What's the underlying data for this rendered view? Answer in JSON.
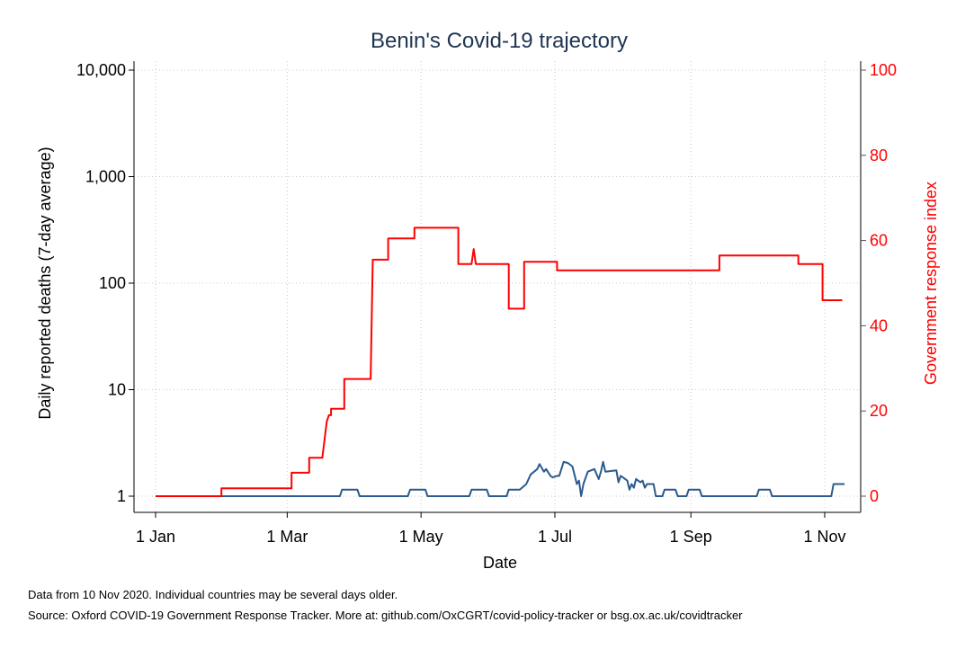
{
  "chart_data": {
    "type": "line",
    "title": "Benin's Covid-19 trajectory",
    "xlabel": "Date",
    "ylabel_left": "Daily reported deaths (7-day average)",
    "ylabel_right": "Government response index",
    "x_range": [
      "2020-01-01",
      "2020-11-10"
    ],
    "x_ticks": [
      {
        "date": "2020-01-01",
        "label": "1 Jan"
      },
      {
        "date": "2020-03-01",
        "label": "1 Mar"
      },
      {
        "date": "2020-05-01",
        "label": "1 May"
      },
      {
        "date": "2020-07-01",
        "label": "1 Jul"
      },
      {
        "date": "2020-09-01",
        "label": "1 Sep"
      },
      {
        "date": "2020-11-01",
        "label": "1 Nov"
      }
    ],
    "y_left": {
      "scale": "log",
      "range": [
        1,
        10000
      ],
      "ticks": [
        1,
        10,
        100,
        1000,
        10000
      ],
      "tick_labels": [
        "1",
        "10",
        "100",
        "1,000",
        "10,000"
      ]
    },
    "y_right": {
      "scale": "linear",
      "range": [
        0,
        100
      ],
      "ticks": [
        0,
        20,
        40,
        60,
        80,
        100
      ],
      "tick_labels": [
        "0",
        "20",
        "40",
        "60",
        "80",
        "100"
      ]
    },
    "grid": true,
    "legend": "none",
    "series": [
      {
        "axis": "left",
        "color": "#2b5a8c",
        "points": [
          [
            "2020-01-01",
            1
          ],
          [
            "2020-03-25",
            1
          ],
          [
            "2020-03-26",
            1.15
          ],
          [
            "2020-04-02",
            1.15
          ],
          [
            "2020-04-03",
            1
          ],
          [
            "2020-04-25",
            1
          ],
          [
            "2020-04-26",
            1.15
          ],
          [
            "2020-05-03",
            1.15
          ],
          [
            "2020-05-04",
            1
          ],
          [
            "2020-05-23",
            1
          ],
          [
            "2020-05-24",
            1.15
          ],
          [
            "2020-05-31",
            1.15
          ],
          [
            "2020-06-01",
            1
          ],
          [
            "2020-06-09",
            1
          ],
          [
            "2020-06-10",
            1.15
          ],
          [
            "2020-06-15",
            1.15
          ],
          [
            "2020-06-18",
            1.3
          ],
          [
            "2020-06-20",
            1.6
          ],
          [
            "2020-06-23",
            1.8
          ],
          [
            "2020-06-24",
            2.0
          ],
          [
            "2020-06-26",
            1.7
          ],
          [
            "2020-06-27",
            1.8
          ],
          [
            "2020-06-29",
            1.55
          ],
          [
            "2020-06-30",
            1.5
          ],
          [
            "2020-07-02",
            1.55
          ],
          [
            "2020-07-03",
            1.55
          ],
          [
            "2020-07-05",
            2.1
          ],
          [
            "2020-07-07",
            2.05
          ],
          [
            "2020-07-09",
            1.9
          ],
          [
            "2020-07-11",
            1.3
          ],
          [
            "2020-07-12",
            1.4
          ],
          [
            "2020-07-13",
            1.0
          ],
          [
            "2020-07-14",
            1.3
          ],
          [
            "2020-07-16",
            1.7
          ],
          [
            "2020-07-19",
            1.8
          ],
          [
            "2020-07-21",
            1.45
          ],
          [
            "2020-07-22",
            1.7
          ],
          [
            "2020-07-23",
            2.1
          ],
          [
            "2020-07-24",
            1.7
          ],
          [
            "2020-07-29",
            1.75
          ],
          [
            "2020-07-30",
            1.35
          ],
          [
            "2020-07-31",
            1.55
          ],
          [
            "2020-08-01",
            1.5
          ],
          [
            "2020-08-03",
            1.4
          ],
          [
            "2020-08-04",
            1.15
          ],
          [
            "2020-08-05",
            1.3
          ],
          [
            "2020-08-06",
            1.2
          ],
          [
            "2020-08-07",
            1.45
          ],
          [
            "2020-08-09",
            1.35
          ],
          [
            "2020-08-10",
            1.4
          ],
          [
            "2020-08-11",
            1.2
          ],
          [
            "2020-08-12",
            1.3
          ],
          [
            "2020-08-15",
            1.3
          ],
          [
            "2020-08-16",
            1.0
          ],
          [
            "2020-08-19",
            1.0
          ],
          [
            "2020-08-20",
            1.15
          ],
          [
            "2020-08-25",
            1.15
          ],
          [
            "2020-08-26",
            1.0
          ],
          [
            "2020-08-30",
            1.0
          ],
          [
            "2020-08-31",
            1.15
          ],
          [
            "2020-09-05",
            1.15
          ],
          [
            "2020-09-06",
            1.0
          ],
          [
            "2020-10-01",
            1.0
          ],
          [
            "2020-10-02",
            1.15
          ],
          [
            "2020-10-07",
            1.15
          ],
          [
            "2020-10-08",
            1.0
          ],
          [
            "2020-11-04",
            1.0
          ],
          [
            "2020-11-05",
            1.3
          ],
          [
            "2020-11-10",
            1.3
          ]
        ]
      },
      {
        "axis": "right",
        "color": "#ff0000",
        "points": [
          [
            "2020-01-01",
            0
          ],
          [
            "2020-01-31",
            0
          ],
          [
            "2020-01-31",
            1.85
          ],
          [
            "2020-03-03",
            1.85
          ],
          [
            "2020-03-03",
            5.5
          ],
          [
            "2020-03-11",
            5.5
          ],
          [
            "2020-03-11",
            9.0
          ],
          [
            "2020-03-17",
            9.0
          ],
          [
            "2020-03-19",
            17.5
          ],
          [
            "2020-03-20",
            19.0
          ],
          [
            "2020-03-21",
            19.0
          ],
          [
            "2020-03-21",
            20.5
          ],
          [
            "2020-03-27",
            20.5
          ],
          [
            "2020-03-27",
            27.5
          ],
          [
            "2020-04-08",
            27.5
          ],
          [
            "2020-04-09",
            55.5
          ],
          [
            "2020-04-16",
            55.5
          ],
          [
            "2020-04-16",
            60.5
          ],
          [
            "2020-04-28",
            60.5
          ],
          [
            "2020-04-28",
            63.0
          ],
          [
            "2020-05-18",
            63.0
          ],
          [
            "2020-05-18",
            54.5
          ],
          [
            "2020-05-24",
            54.5
          ],
          [
            "2020-05-25",
            58.0
          ],
          [
            "2020-05-26",
            54.5
          ],
          [
            "2020-06-10",
            54.5
          ],
          [
            "2020-06-10",
            44.0
          ],
          [
            "2020-06-17",
            44.0
          ],
          [
            "2020-06-17",
            55.0
          ],
          [
            "2020-07-02",
            55.0
          ],
          [
            "2020-07-02",
            53.0
          ],
          [
            "2020-09-14",
            53.0
          ],
          [
            "2020-09-14",
            56.5
          ],
          [
            "2020-10-20",
            56.5
          ],
          [
            "2020-10-20",
            54.5
          ],
          [
            "2020-10-31",
            54.5
          ],
          [
            "2020-10-31",
            46.0
          ],
          [
            "2020-11-09",
            46.0
          ]
        ]
      }
    ]
  },
  "notes": {
    "line1": "Data from 10 Nov 2020. Individual countries may be several days older.",
    "line2": "Source: Oxford COVID-19 Government Response Tracker. More at: github.com/OxCGRT/covid-policy-tracker or bsg.ox.ac.uk/covidtracker"
  }
}
